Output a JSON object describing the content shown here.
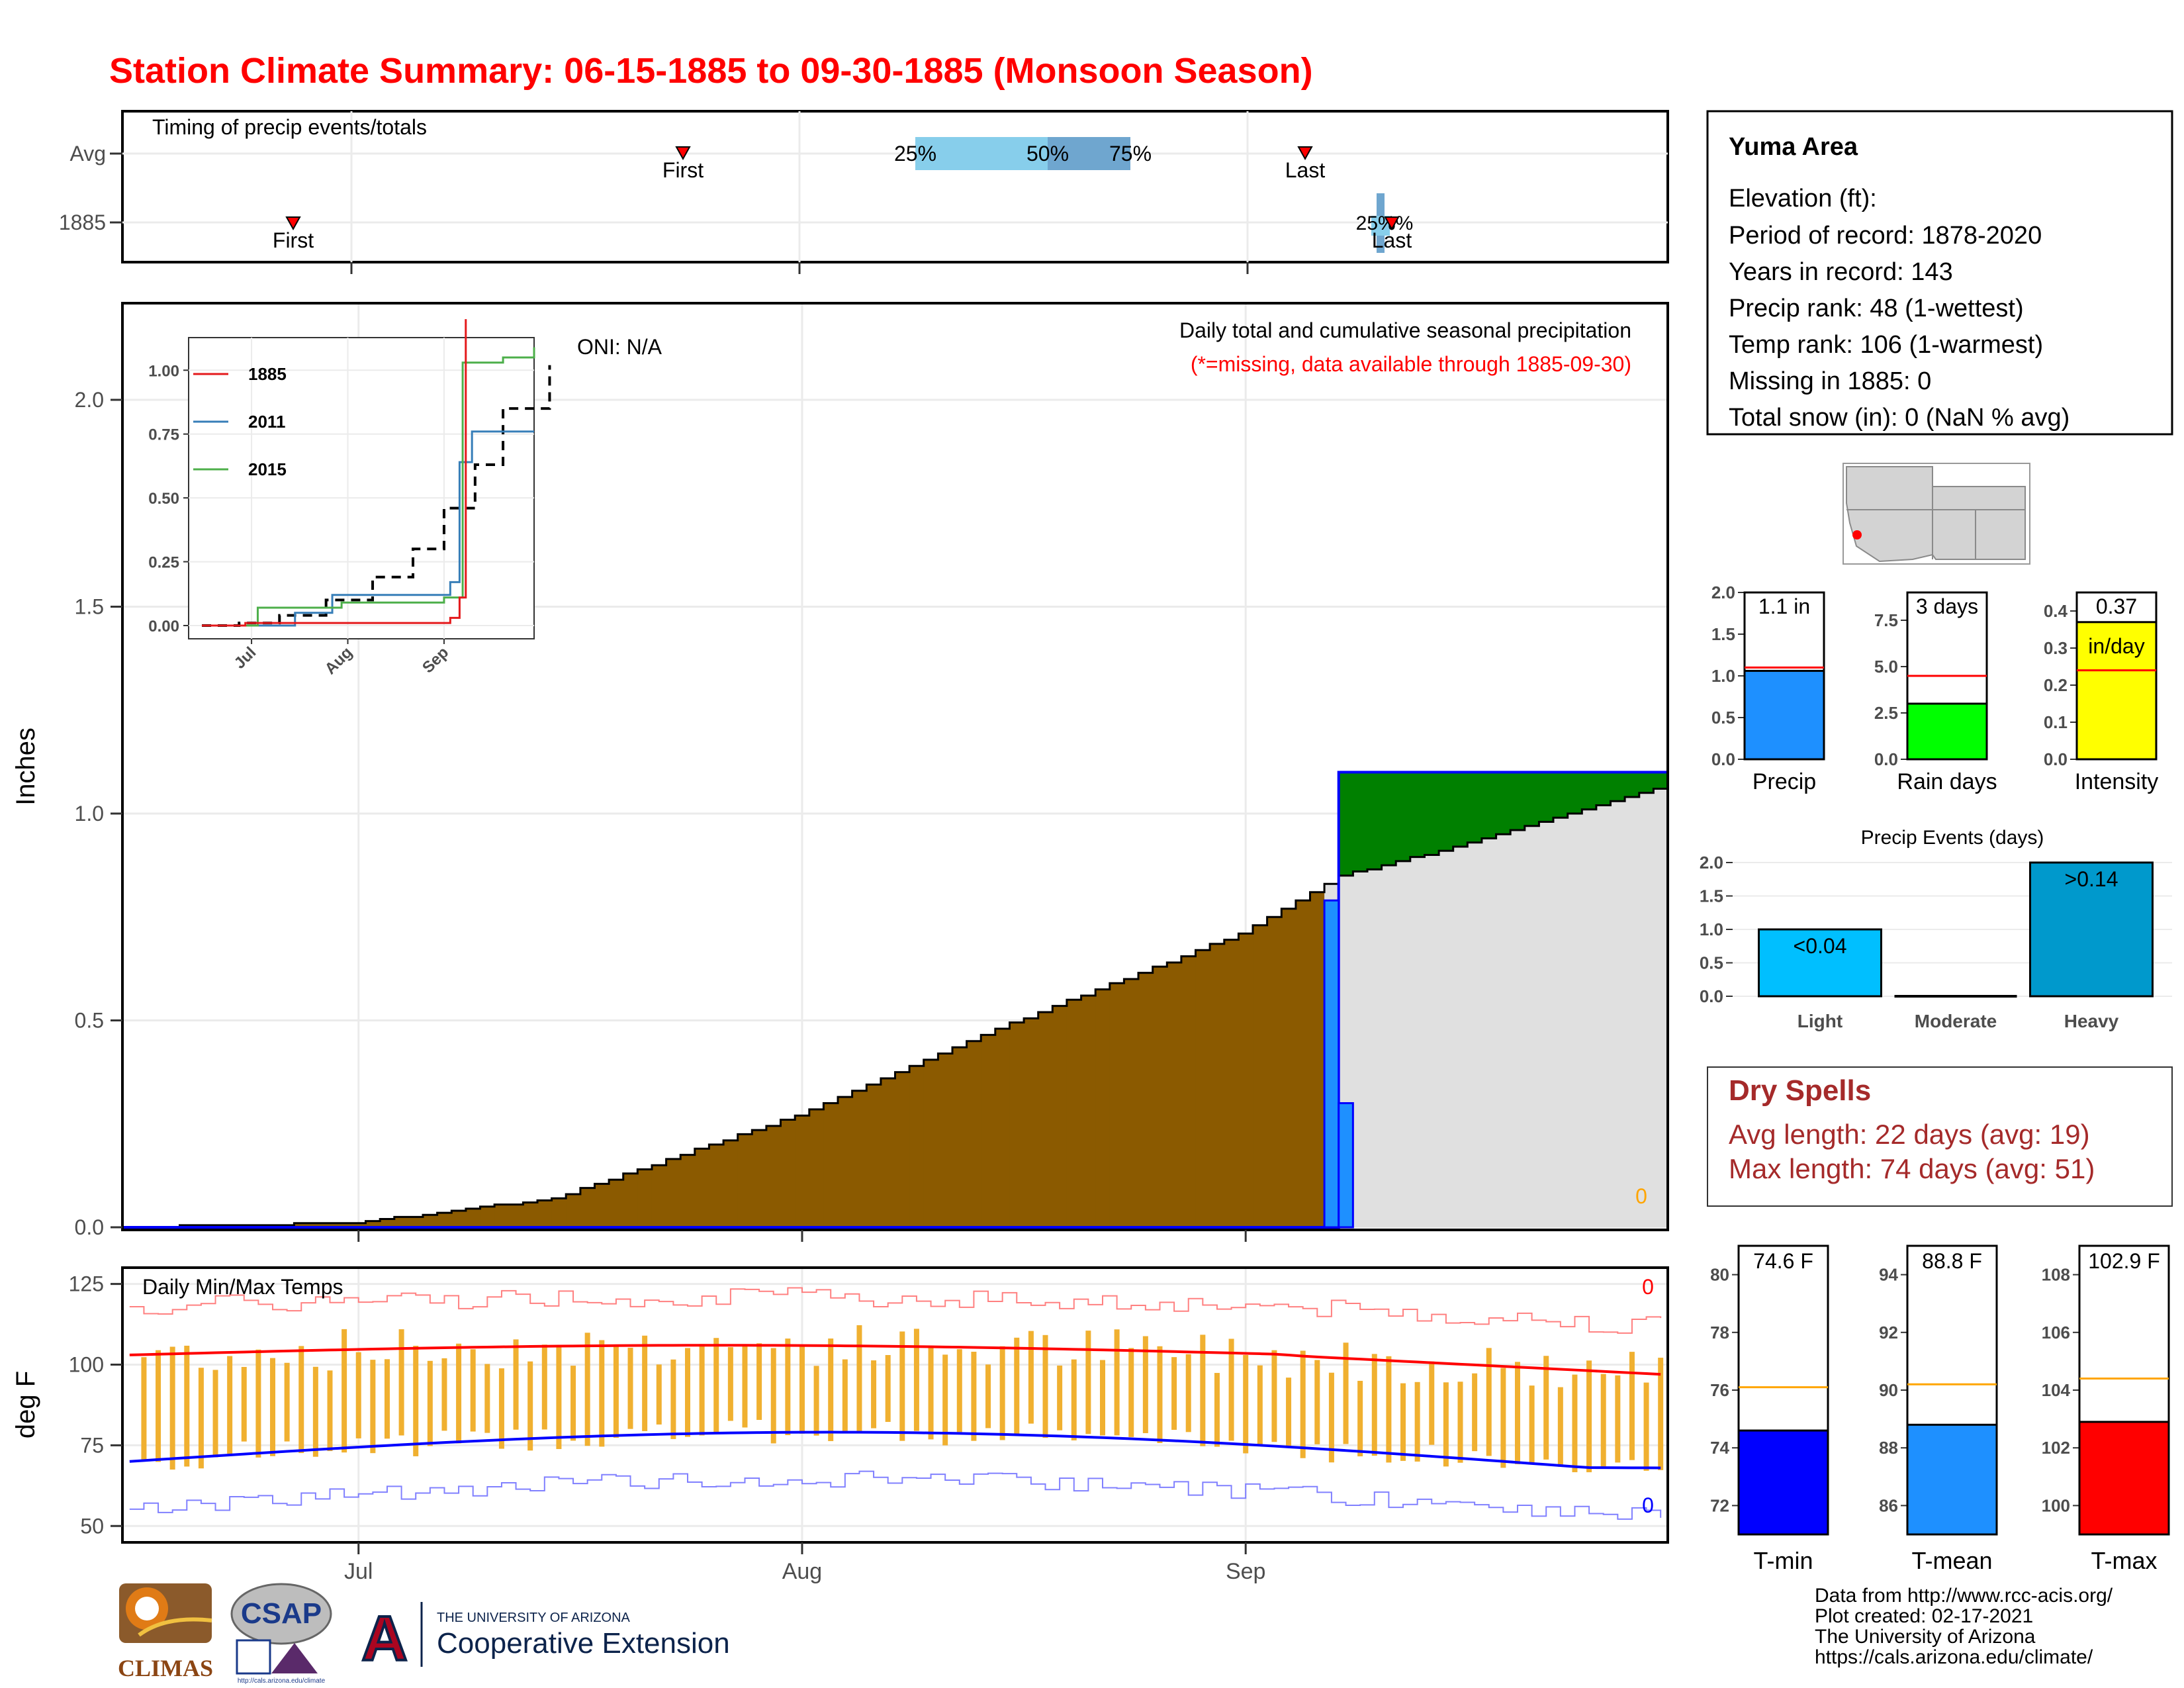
{
  "title": "Station Climate Summary: 06-15-1885 to 09-30-1885 (Monsoon Season)",
  "colors": {
    "title": "#ff0000",
    "precip_observed": "#8b5a00",
    "precip_surplus": "#008000",
    "precip_normal": "#e0e0e0",
    "daily_bar": "#1e90ff",
    "temp_bar": "#f0b030",
    "tmax_line": "#ff0000",
    "tmin_line": "#0000ff",
    "dry_spells": "#a52a2a"
  },
  "timing_panel": {
    "label": "Timing of precip events/totals",
    "rows": [
      "Avg",
      "1885"
    ],
    "avg": {
      "first_label": "First",
      "last_label": "Last",
      "p25": "25%",
      "p50": "50%",
      "p75": "75%"
    },
    "year": {
      "first_label": "First",
      "last_label": "Last",
      "pct_text": "25%%"
    }
  },
  "main_panel": {
    "ylabel": "Inches",
    "caption": "Daily total and cumulative seasonal precipitation",
    "missing_note": "(*=missing, data available through 1885-09-30)",
    "oni": "ONI: N/A",
    "zero_label": "0",
    "yticks": [
      "0.0",
      "0.5",
      "1.0",
      "1.5",
      "2.0"
    ],
    "xticks": [
      "Jul",
      "Aug",
      "Sep"
    ]
  },
  "inset": {
    "yticks": [
      "0.00",
      "0.25",
      "0.50",
      "0.75",
      "1.00"
    ],
    "xticks": [
      "Jul",
      "Aug",
      "Sep"
    ],
    "legend": [
      {
        "name": "1885",
        "color": "#e41a1c"
      },
      {
        "name": "2011",
        "color": "#377eb8"
      },
      {
        "name": "2015",
        "color": "#4daf4a"
      }
    ]
  },
  "temp_panel": {
    "label": "Daily Min/Max Temps",
    "ylabel": "deg F",
    "yticks": [
      "50",
      "75",
      "100",
      "125"
    ],
    "xticks": [
      "Jul",
      "Aug",
      "Sep"
    ],
    "missing_tmax": "0",
    "missing_tmin": "0"
  },
  "info_box": {
    "station": "Yuma Area",
    "lines": [
      "Elevation (ft):",
      "Period of record: 1878-2020",
      "Years in record: 143",
      "Precip rank: 48 (1-wettest)",
      "Temp rank: 106 (1-warmest)",
      "Missing in 1885: 0",
      "Total snow (in): 0 (NaN % avg)"
    ]
  },
  "mini_bars": {
    "precip": {
      "label": "Precip",
      "value_text": "1.1 in",
      "yticks": [
        "0.0",
        "0.5",
        "1.0",
        "1.5",
        "2.0"
      ],
      "value": 1.06,
      "normal": 1.1,
      "max": 2.0
    },
    "rain_days": {
      "label": "Rain days",
      "value_text": "3 days",
      "yticks": [
        "0.0",
        "2.5",
        "5.0",
        "7.5"
      ],
      "value": 3,
      "normal": 4.5,
      "max": 9
    },
    "intensity": {
      "label": "Intensity",
      "value_text": "0.37",
      "unit": "in/day",
      "yticks": [
        "0.0",
        "0.1",
        "0.2",
        "0.3",
        "0.4"
      ],
      "value": 0.37,
      "normal": 0.24,
      "max": 0.45
    }
  },
  "precip_events": {
    "title": "Precip Events (days)",
    "yticks": [
      "0.0",
      "0.5",
      "1.0",
      "1.5",
      "2.0"
    ],
    "bars": [
      {
        "category": "Light",
        "value": 1,
        "label": "<0.04"
      },
      {
        "category": "Moderate",
        "value": 0,
        "label": ""
      },
      {
        "category": "Heavy",
        "value": 2,
        "label": ">0.14"
      }
    ]
  },
  "dry_spells": {
    "title": "Dry Spells",
    "avg_line": "Avg length: 22 days (avg: 19)",
    "max_line": "Max length: 74 days (avg: 51)"
  },
  "temp_bars": {
    "tmin": {
      "label": "T-min",
      "value_text": "74.6 F",
      "value": 74.6,
      "normal": 76.1,
      "ymin": 71,
      "ymax": 81,
      "yticks": [
        "72",
        "74",
        "76",
        "78",
        "80"
      ]
    },
    "tmean": {
      "label": "T-mean",
      "value_text": "88.8 F",
      "value": 88.8,
      "normal": 90.2,
      "ymin": 85,
      "ymax": 95,
      "yticks": [
        "86",
        "88",
        "90",
        "92",
        "94"
      ]
    },
    "tmax": {
      "label": "T-max",
      "value_text": "102.9 F",
      "value": 102.9,
      "normal": 104.4,
      "ymin": 99,
      "ymax": 109,
      "yticks": [
        "100",
        "102",
        "104",
        "106",
        "108"
      ]
    }
  },
  "credits": [
    "Data from http://www.rcc-acis.org/",
    "Plot created: 02-17-2021",
    "The University of Arizona",
    "https://cals.arizona.edu/climate/"
  ],
  "logos": {
    "climas": "CLIMAS",
    "csap": "CSAP",
    "csap_url": "http://cals.arizona.edu/climate",
    "ua_letter": "A",
    "ua_line1": "THE UNIVERSITY OF ARIZONA",
    "ua_line2": "Cooperative Extension"
  },
  "chart_data": {
    "type": "area",
    "title": "Daily total and cumulative seasonal precipitation",
    "xlabel": "",
    "ylabel": "Inches",
    "ylim": [
      0,
      2.2
    ],
    "x_range": [
      "1885-06-15",
      "1885-09-30"
    ],
    "series": [
      {
        "name": "1885",
        "type": "step-area",
        "x": [
          "1885-06-15",
          "1885-09-07",
          "1885-09-08",
          "1885-09-30"
        ],
        "values": [
          0.0,
          0.0,
          1.1,
          1.1
        ]
      },
      {
        "name": "",
        "type": "cumulative-normal",
        "x": [
          "1885-06-15",
          "1885-07-01",
          "1885-07-15",
          "1885-08-01",
          "1885-08-15",
          "1885-09-01",
          "1885-09-08",
          "1885-09-15",
          "1885-09-30"
        ],
        "values": [
          0.0,
          0.01,
          0.07,
          0.27,
          0.48,
          0.71,
          0.85,
          0.91,
          1.06
        ]
      },
      {
        "name": "",
        "type": "daily-bars",
        "x": [
          "1885-09-07",
          "1885-09-08"
        ],
        "values": [
          0.79,
          0.3
        ]
      }
    ]
  }
}
